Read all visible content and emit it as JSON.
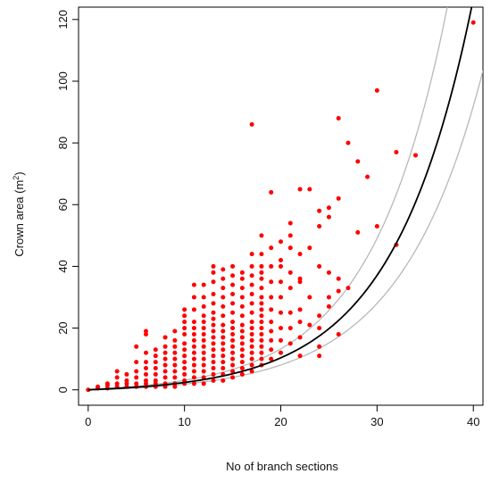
{
  "chart_data": {
    "type": "scatter",
    "xlabel": "No of branch sections",
    "ylabel_main": "Crown area (m",
    "ylabel_sup": "2",
    "ylabel_close": ")",
    "xlim": [
      -1,
      41
    ],
    "ylim": [
      -5,
      124
    ],
    "xticks": [
      0,
      10,
      20,
      30,
      40
    ],
    "yticks": [
      0,
      20,
      40,
      60,
      80,
      100,
      120
    ],
    "grid": false,
    "legend": "none",
    "colors": {
      "points": "#ff0000",
      "fit": "#000000",
      "band": "#b8b8b8",
      "frame": "#000000"
    },
    "fit_curve": {
      "model": "exponential",
      "a": 1.01,
      "b": 0.121
    },
    "band_upper": {
      "model": "exponential",
      "a": 1.16,
      "b": 0.1255
    },
    "band_lower": {
      "model": "exponential",
      "a": 0.88,
      "b": 0.1165
    },
    "points": [
      [
        0,
        0
      ],
      [
        1,
        0.5
      ],
      [
        1,
        1
      ],
      [
        2,
        0.5
      ],
      [
        2,
        1.5
      ],
      [
        2,
        2
      ],
      [
        3,
        1
      ],
      [
        3,
        2
      ],
      [
        3,
        4
      ],
      [
        3,
        6
      ],
      [
        4,
        1
      ],
      [
        4,
        2
      ],
      [
        4,
        3
      ],
      [
        4,
        5
      ],
      [
        5,
        1
      ],
      [
        5,
        2
      ],
      [
        5,
        4
      ],
      [
        5,
        6
      ],
      [
        5,
        9
      ],
      [
        5,
        14
      ],
      [
        6,
        1
      ],
      [
        6,
        2
      ],
      [
        6,
        3
      ],
      [
        6,
        5
      ],
      [
        6,
        7
      ],
      [
        6,
        9
      ],
      [
        6,
        12
      ],
      [
        6,
        18
      ],
      [
        6,
        19
      ],
      [
        7,
        1
      ],
      [
        7,
        2
      ],
      [
        7,
        3
      ],
      [
        7,
        5
      ],
      [
        7,
        7
      ],
      [
        7,
        9
      ],
      [
        7,
        11
      ],
      [
        7,
        13
      ],
      [
        8,
        1
      ],
      [
        8,
        2
      ],
      [
        8,
        4
      ],
      [
        8,
        6
      ],
      [
        8,
        8
      ],
      [
        8,
        10
      ],
      [
        8,
        12
      ],
      [
        8,
        14
      ],
      [
        8,
        17
      ],
      [
        9,
        1
      ],
      [
        9,
        2
      ],
      [
        9,
        4
      ],
      [
        9,
        6
      ],
      [
        9,
        8
      ],
      [
        9,
        10
      ],
      [
        9,
        12
      ],
      [
        9,
        14
      ],
      [
        9,
        16
      ],
      [
        9,
        19
      ],
      [
        10,
        2
      ],
      [
        10,
        3
      ],
      [
        10,
        5
      ],
      [
        10,
        7
      ],
      [
        10,
        9
      ],
      [
        10,
        11
      ],
      [
        10,
        13
      ],
      [
        10,
        15
      ],
      [
        10,
        18
      ],
      [
        10,
        20
      ],
      [
        10,
        22
      ],
      [
        10,
        24
      ],
      [
        10,
        26
      ],
      [
        11,
        2
      ],
      [
        11,
        4
      ],
      [
        11,
        6
      ],
      [
        11,
        8
      ],
      [
        11,
        10
      ],
      [
        11,
        12
      ],
      [
        11,
        14
      ],
      [
        11,
        16
      ],
      [
        11,
        18
      ],
      [
        11,
        20
      ],
      [
        11,
        22
      ],
      [
        11,
        26
      ],
      [
        11,
        30
      ],
      [
        11,
        34
      ],
      [
        12,
        2
      ],
      [
        12,
        4
      ],
      [
        12,
        6
      ],
      [
        12,
        8
      ],
      [
        12,
        10
      ],
      [
        12,
        12
      ],
      [
        12,
        14
      ],
      [
        12,
        16
      ],
      [
        12,
        18
      ],
      [
        12,
        20
      ],
      [
        12,
        22
      ],
      [
        12,
        24
      ],
      [
        12,
        27
      ],
      [
        12,
        30
      ],
      [
        12,
        34
      ],
      [
        13,
        3
      ],
      [
        13,
        5
      ],
      [
        13,
        7
      ],
      [
        13,
        9
      ],
      [
        13,
        11
      ],
      [
        13,
        13
      ],
      [
        13,
        15
      ],
      [
        13,
        17
      ],
      [
        13,
        19
      ],
      [
        13,
        21
      ],
      [
        13,
        23
      ],
      [
        13,
        25
      ],
      [
        13,
        28
      ],
      [
        13,
        31
      ],
      [
        13,
        35
      ],
      [
        13,
        38
      ],
      [
        13,
        40
      ],
      [
        14,
        3
      ],
      [
        14,
        5
      ],
      [
        14,
        7
      ],
      [
        14,
        9
      ],
      [
        14,
        11
      ],
      [
        14,
        13
      ],
      [
        14,
        15
      ],
      [
        14,
        17
      ],
      [
        14,
        19
      ],
      [
        14,
        21
      ],
      [
        14,
        24
      ],
      [
        14,
        27
      ],
      [
        14,
        30
      ],
      [
        14,
        33
      ],
      [
        14,
        36
      ],
      [
        14,
        39
      ],
      [
        15,
        4
      ],
      [
        15,
        6
      ],
      [
        15,
        8
      ],
      [
        15,
        10
      ],
      [
        15,
        12
      ],
      [
        15,
        14
      ],
      [
        15,
        16
      ],
      [
        15,
        18
      ],
      [
        15,
        20
      ],
      [
        15,
        22
      ],
      [
        15,
        25
      ],
      [
        15,
        28
      ],
      [
        15,
        31
      ],
      [
        15,
        34
      ],
      [
        15,
        37
      ],
      [
        15,
        40
      ],
      [
        16,
        5
      ],
      [
        16,
        7
      ],
      [
        16,
        9
      ],
      [
        16,
        11
      ],
      [
        16,
        13
      ],
      [
        16,
        15
      ],
      [
        16,
        17
      ],
      [
        16,
        19
      ],
      [
        16,
        21
      ],
      [
        16,
        24
      ],
      [
        16,
        27
      ],
      [
        16,
        30
      ],
      [
        16,
        33
      ],
      [
        16,
        36
      ],
      [
        16,
        38
      ],
      [
        17,
        6
      ],
      [
        17,
        8
      ],
      [
        17,
        10
      ],
      [
        17,
        12
      ],
      [
        17,
        14
      ],
      [
        17,
        16
      ],
      [
        17,
        18
      ],
      [
        17,
        20
      ],
      [
        17,
        22
      ],
      [
        17,
        25
      ],
      [
        17,
        28
      ],
      [
        17,
        31
      ],
      [
        17,
        34
      ],
      [
        17,
        37
      ],
      [
        17,
        40
      ],
      [
        17,
        44
      ],
      [
        17,
        86
      ],
      [
        18,
        8
      ],
      [
        18,
        10
      ],
      [
        18,
        12
      ],
      [
        18,
        14
      ],
      [
        18,
        16
      ],
      [
        18,
        18
      ],
      [
        18,
        20
      ],
      [
        18,
        22
      ],
      [
        18,
        24
      ],
      [
        18,
        26
      ],
      [
        18,
        28
      ],
      [
        18,
        30
      ],
      [
        18,
        33
      ],
      [
        18,
        36
      ],
      [
        18,
        38
      ],
      [
        18,
        40
      ],
      [
        18,
        44
      ],
      [
        18,
        50
      ],
      [
        19,
        10
      ],
      [
        19,
        13
      ],
      [
        19,
        16
      ],
      [
        19,
        19
      ],
      [
        19,
        22
      ],
      [
        19,
        26
      ],
      [
        19,
        30
      ],
      [
        19,
        35
      ],
      [
        19,
        40
      ],
      [
        19,
        46
      ],
      [
        19,
        64
      ],
      [
        20,
        12
      ],
      [
        20,
        16
      ],
      [
        20,
        20
      ],
      [
        20,
        25
      ],
      [
        20,
        30
      ],
      [
        20,
        35
      ],
      [
        20,
        40
      ],
      [
        20,
        42
      ],
      [
        20,
        48
      ],
      [
        21,
        15
      ],
      [
        21,
        20
      ],
      [
        21,
        25
      ],
      [
        21,
        33
      ],
      [
        21,
        38
      ],
      [
        21,
        46
      ],
      [
        21,
        50
      ],
      [
        21,
        54
      ],
      [
        22,
        11
      ],
      [
        22,
        17
      ],
      [
        22,
        22
      ],
      [
        22,
        26
      ],
      [
        22,
        35
      ],
      [
        22,
        36
      ],
      [
        22,
        44
      ],
      [
        22,
        65
      ],
      [
        23,
        21
      ],
      [
        23,
        30
      ],
      [
        23,
        46
      ],
      [
        23,
        65
      ],
      [
        24,
        11
      ],
      [
        24,
        14
      ],
      [
        24,
        20
      ],
      [
        24,
        24
      ],
      [
        24,
        40
      ],
      [
        24,
        53
      ],
      [
        24,
        58
      ],
      [
        25,
        27
      ],
      [
        25,
        30
      ],
      [
        25,
        38
      ],
      [
        25,
        56
      ],
      [
        25,
        59
      ],
      [
        26,
        18
      ],
      [
        26,
        32
      ],
      [
        26,
        36
      ],
      [
        26,
        62
      ],
      [
        26,
        88
      ],
      [
        27,
        33
      ],
      [
        27,
        80
      ],
      [
        28,
        51
      ],
      [
        28,
        74
      ],
      [
        29,
        69
      ],
      [
        30,
        53
      ],
      [
        30,
        97
      ],
      [
        32,
        47
      ],
      [
        32,
        77
      ],
      [
        34,
        76
      ],
      [
        40,
        119
      ]
    ]
  }
}
